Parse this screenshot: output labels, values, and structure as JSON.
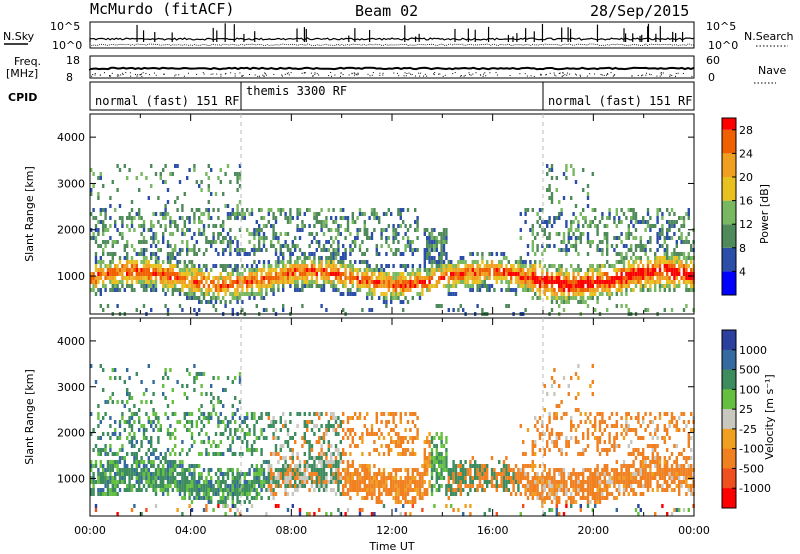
{
  "header": {
    "station": "McMurdo (fitACF)",
    "beam": "Beam 02",
    "date": "28/Sep/2015"
  },
  "top_panels": {
    "nsky_label": "N.Sky",
    "nsearch_label": "N.Search",
    "freq_label_1": "Freq.",
    "freq_label_2": "[MHz]",
    "nave_label": "Nave",
    "cpid_label": "CPID",
    "noise_ticks_left": [
      "10^5",
      "10^0"
    ],
    "noise_ticks_right": [
      "10^5",
      "10^0"
    ],
    "freq_ticks": [
      "18",
      "8"
    ],
    "nave_ticks": [
      "60",
      "0"
    ],
    "cpid_segments": [
      {
        "label": "normal (fast) 151 RF",
        "start": 0,
        "end": 6
      },
      {
        "label": "themis 3300 RF",
        "start": 6,
        "end": 18
      },
      {
        "label": "normal (fast) 151 RF",
        "start": 18,
        "end": 24
      }
    ]
  },
  "colors": {
    "power_scale": [
      "#0000ff",
      "#2b4fa8",
      "#4f8a5a",
      "#78b860",
      "#e8c020",
      "#f0a020",
      "#f06000",
      "#ff0000"
    ],
    "velocity_scale": [
      "#2a3f9e",
      "#356aa0",
      "#3d8c5e",
      "#66c040",
      "#c8c8c0",
      "#f0a020",
      "#f08020",
      "#f05020",
      "#ff0000"
    ]
  },
  "chart_data": [
    {
      "type": "heatmap",
      "name": "power",
      "xlabel": "",
      "ylabel": "Slant Range [km]",
      "x_range_hours": [
        0,
        24
      ],
      "ylim": [
        180,
        4500
      ],
      "y_ticks": [
        1000,
        2000,
        3000,
        4000
      ],
      "colorbar_label": "Power [dB]",
      "colorbar_ticks": [
        4,
        8,
        12,
        16,
        20,
        24,
        28
      ],
      "colorbar_range": [
        0,
        30
      ]
    },
    {
      "type": "heatmap",
      "name": "velocity",
      "xlabel": "Time UT",
      "ylabel": "Slant Range [km]",
      "x_range_hours": [
        0,
        24
      ],
      "x_ticks": [
        "00:00",
        "04:00",
        "08:00",
        "12:00",
        "16:00",
        "20:00",
        "00:00"
      ],
      "ylim": [
        180,
        4500
      ],
      "y_ticks": [
        1000,
        2000,
        3000,
        4000
      ],
      "colorbar_label": "Velocity [m s⁻¹]",
      "colorbar_ticks": [
        "1000",
        "500",
        "100",
        "25",
        "-25",
        "-100",
        "-500",
        "-1000"
      ]
    }
  ]
}
